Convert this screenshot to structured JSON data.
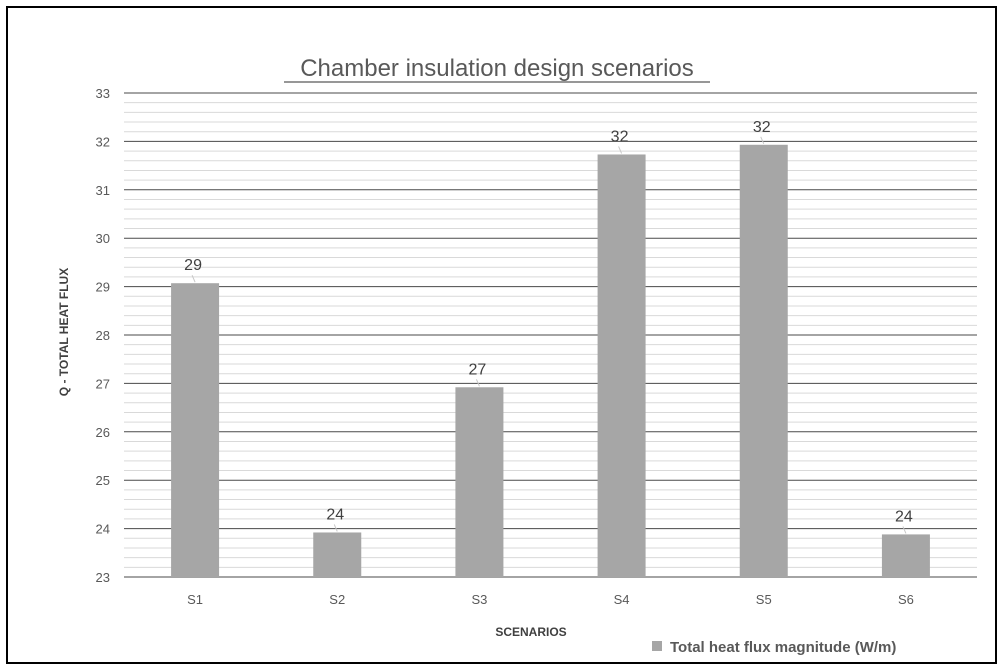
{
  "colors": {
    "bar": "#a6a6a6",
    "major_grid": "#4a4a4a",
    "minor_grid": "#d9d9d9",
    "leader_line": "#c8c8c8"
  },
  "chart_data": {
    "type": "bar",
    "title": "Chamber insulation design scenarios",
    "xlabel": "SCENARIOS",
    "ylabel": "Q - TOTAL HEAT FLUX",
    "categories": [
      "S1",
      "S2",
      "S3",
      "S4",
      "S5",
      "S6"
    ],
    "series": [
      {
        "name": "Total heat flux magnitude (W/m)",
        "values": [
          29.07,
          23.92,
          26.92,
          31.73,
          31.93,
          23.88
        ],
        "data_labels": [
          "29",
          "24",
          "27",
          "32",
          "32",
          "24"
        ]
      }
    ],
    "ylim": [
      23,
      33
    ],
    "yticks": [
      "23",
      "24",
      "25",
      "26",
      "27",
      "28",
      "29",
      "30",
      "31",
      "32",
      "33"
    ],
    "grid": true,
    "legend": "bottom-right"
  }
}
